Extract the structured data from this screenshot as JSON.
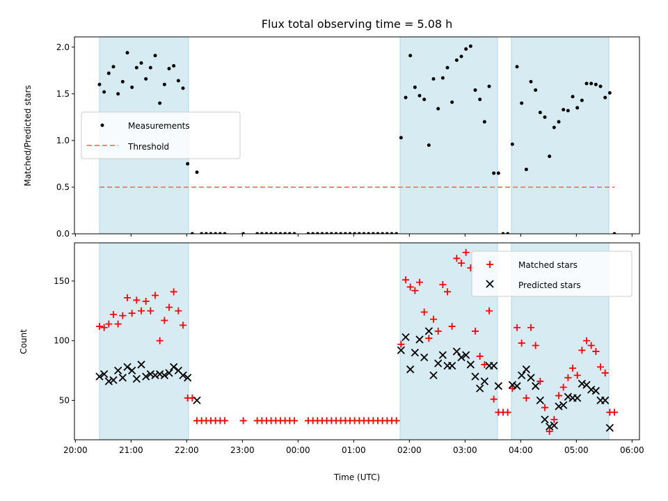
{
  "chart_data": [
    {
      "type": "scatter",
      "title": "Flux total observing time = 5.08 h",
      "xlabel": "",
      "ylabel": "Matched/Predicted stars",
      "ylim": [
        0,
        2.11
      ],
      "xlim": [
        "19:59",
        "06:08"
      ],
      "yticks": [
        "0.0",
        "0.5",
        "1.0",
        "1.5",
        "2.0"
      ],
      "ytick_values": [
        0,
        0.5,
        1.0,
        1.5,
        2.0
      ],
      "start_time": "20:26",
      "step_minutes": 5,
      "legend_position": "center-left",
      "series": [
        {
          "name": "Measurements",
          "color": "#000000",
          "marker": "dot",
          "values": [
            1.6,
            1.52,
            1.72,
            1.79,
            1.5,
            1.63,
            1.94,
            1.57,
            1.78,
            1.83,
            1.66,
            1.78,
            1.91,
            1.4,
            1.6,
            1.77,
            1.8,
            1.64,
            1.56,
            0.75,
            0,
            0.66,
            0,
            0,
            0,
            0,
            0,
            0,
            null,
            null,
            null,
            0,
            null,
            null,
            0,
            0,
            0,
            0,
            0,
            0,
            0,
            0,
            0,
            null,
            null,
            0,
            0,
            0,
            0,
            0,
            0,
            0,
            0,
            0,
            0,
            0,
            0,
            0,
            0,
            0,
            0,
            0,
            0,
            0,
            0,
            1.03,
            1.46,
            1.91,
            1.57,
            1.48,
            1.44,
            0.95,
            1.66,
            1.34,
            1.67,
            1.78,
            1.41,
            1.86,
            1.9,
            1.98,
            2.01,
            1.54,
            1.44,
            1.2,
            1.58,
            0.65,
            0.65,
            0,
            0,
            0.96,
            1.79,
            1.4,
            0.69,
            1.63,
            1.54,
            1.3,
            1.25,
            0.83,
            1.14,
            1.2,
            1.33,
            1.32,
            1.47,
            1.35,
            1.43,
            1.61,
            1.61,
            1.6,
            1.58,
            1.46,
            1.51,
            0
          ]
        }
      ],
      "threshold": {
        "name": "Threshold",
        "value": 0.5,
        "from": "20:26",
        "to": "05:41",
        "color": "#ff7f7f"
      },
      "shaded_spans": [
        [
          "20:26",
          "22:02"
        ],
        [
          "01:50",
          "03:35"
        ],
        [
          "03:50",
          "05:35"
        ]
      ],
      "shade_color": "#add8e6"
    },
    {
      "type": "scatter",
      "title": "",
      "xlabel": "Time (UTC)",
      "ylabel": "Count",
      "ylim": [
        17,
        182
      ],
      "xlim": [
        "19:59",
        "06:08"
      ],
      "yticks": [
        "50",
        "100",
        "150"
      ],
      "ytick_values": [
        50,
        100,
        150
      ],
      "xticks": [
        "20:00",
        "21:00",
        "22:00",
        "23:00",
        "00:00",
        "01:00",
        "02:00",
        "03:00",
        "04:00",
        "05:00",
        "06:00"
      ],
      "start_time": "20:26",
      "step_minutes": 5,
      "legend_position": "top-right",
      "series": [
        {
          "name": "Matched stars",
          "color": "#ff0000",
          "marker": "plus",
          "values": [
            112,
            111,
            114,
            122,
            114,
            121,
            136,
            123,
            134,
            125,
            133,
            125,
            138,
            100,
            117,
            128,
            141,
            125,
            113,
            52,
            52,
            33,
            33,
            33,
            33,
            33,
            33,
            33,
            null,
            null,
            null,
            33,
            null,
            null,
            33,
            33,
            33,
            33,
            33,
            33,
            33,
            33,
            33,
            null,
            null,
            33,
            33,
            33,
            33,
            33,
            33,
            33,
            33,
            33,
            33,
            33,
            33,
            33,
            33,
            33,
            33,
            33,
            33,
            33,
            33,
            97,
            151,
            145,
            142,
            149,
            124,
            102,
            118,
            108,
            147,
            141,
            112,
            169,
            165,
            174,
            161,
            108,
            87,
            80,
            125,
            51,
            40,
            40,
            40,
            60,
            111,
            98,
            52,
            111,
            96,
            66,
            44,
            24,
            34,
            54,
            61,
            69,
            77,
            71,
            92,
            100,
            96,
            91,
            78,
            73,
            40,
            40
          ]
        },
        {
          "name": "Predicted stars",
          "color": "#000000",
          "marker": "x",
          "values": [
            70,
            72,
            66,
            67,
            75,
            69,
            78,
            75,
            68,
            80,
            70,
            72,
            71,
            72,
            71,
            73,
            78,
            75,
            71,
            69,
            null,
            50,
            null,
            null,
            null,
            null,
            null,
            null,
            null,
            null,
            null,
            null,
            null,
            null,
            null,
            null,
            null,
            null,
            null,
            null,
            null,
            null,
            null,
            null,
            null,
            null,
            null,
            null,
            null,
            null,
            null,
            null,
            null,
            null,
            null,
            null,
            null,
            null,
            null,
            null,
            null,
            null,
            null,
            null,
            null,
            92,
            103,
            76,
            90,
            101,
            86,
            108,
            71,
            81,
            88,
            79,
            79,
            91,
            86,
            88,
            80,
            70,
            60,
            66,
            79,
            79,
            62,
            null,
            null,
            63,
            62,
            71,
            76,
            69,
            62,
            50,
            34,
            28,
            29,
            45,
            46,
            53,
            52,
            52,
            64,
            63,
            59,
            58,
            50,
            50,
            27,
            null
          ]
        }
      ],
      "shaded_spans": [
        [
          "20:26",
          "22:02"
        ],
        [
          "01:50",
          "03:35"
        ],
        [
          "03:50",
          "05:35"
        ]
      ],
      "shade_color": "#add8e6"
    }
  ]
}
